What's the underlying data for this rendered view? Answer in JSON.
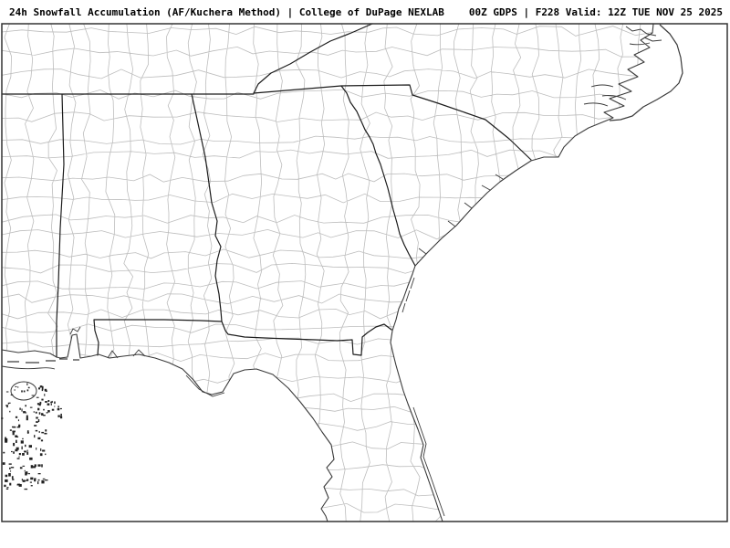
{
  "header": {
    "title_left": "24h Snowfall Accumulation (AF/Kuchera Method) | College of DuPage NEXLAB",
    "title_right": "00Z GDPS | F228 Valid: 12Z TUE NOV 25 2025",
    "product": "24h Snowfall Accumulation",
    "method": "AF/Kuchera Method",
    "source": "College of DuPage NEXLAB",
    "init_time": "00Z",
    "model": "GDPS",
    "forecast_hour": "F228",
    "valid_time": "12Z TUE NOV 25 2025"
  },
  "map": {
    "region": "Southeastern United States county map",
    "snowfall_shading_present": false,
    "colors": {
      "background": "#ffffff",
      "county_line": "#bdbdbd",
      "state_border": "#1c1c1c",
      "coastline": "#3a3a3a",
      "frame": "#333333",
      "water_detail": "#222222",
      "title_text": "#000000"
    }
  }
}
